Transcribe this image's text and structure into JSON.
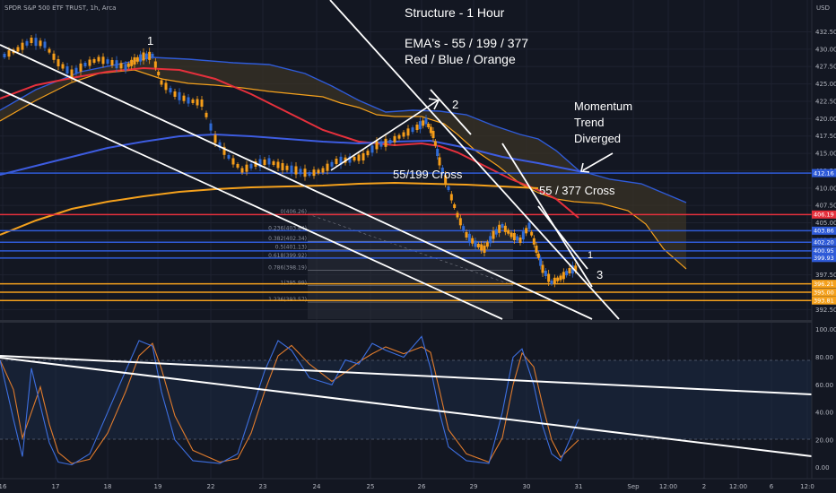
{
  "symbol_title": "SPDR S&P 500 ETF TRUST, 1h, Arca",
  "currency_label": "USD",
  "annotations": {
    "structure": "Structure - 1 Hour",
    "emas": "EMA's - 55 / 199 / 377",
    "colors": "Red  / Blue / Orange",
    "momentum": [
      "Momentum",
      "Trend",
      "Diverged"
    ],
    "cross1": "55/199 Cross",
    "cross2": "55 / 377 Cross",
    "wave1": "1",
    "wave2": "2",
    "wave3": "3",
    "wave1b": "1"
  },
  "colors": {
    "background": "#131722",
    "ema55": "#e5303c",
    "ema199": "#3d5ce0",
    "ema377": "#f5a11c",
    "candle": "#f59d19",
    "candle_up": "#2f6bd6",
    "stoch_k": "#3d6fe0",
    "stoch_d": "#e07b2c",
    "trendline": "#ffffff"
  },
  "chart_data": {
    "type": "candlestick",
    "x_ticks": [
      "16",
      "17",
      "18",
      "19",
      "22",
      "23",
      "24",
      "25",
      "26",
      "29",
      "30",
      "31",
      "Sep",
      "12:00",
      "2",
      "12:00",
      "6",
      "12:0"
    ],
    "price_ticks": [
      "432.50",
      "430.00",
      "427.50",
      "425.00",
      "422.50",
      "420.00",
      "417.50",
      "415.00",
      "412.50",
      "410.00",
      "407.50",
      "405.00",
      "402.50",
      "400.00",
      "397.50",
      "395.00",
      "392.50"
    ],
    "price_range": [
      391.0,
      434.5
    ],
    "price_labels": [
      {
        "value": 412.16,
        "text": "412.16",
        "color": "#2f5bd8"
      },
      {
        "value": 406.19,
        "text": "406.19",
        "color": "#e5303c"
      },
      {
        "value": 403.86,
        "text": "403.86",
        "color": "#2f5bd8"
      },
      {
        "value": 402.2,
        "text": "402.20",
        "color": "#2f5bd8"
      },
      {
        "value": 400.95,
        "text": "400.95",
        "color": "#2f5bd8"
      },
      {
        "value": 399.93,
        "text": "399.93",
        "color": "#2f5bd8"
      },
      {
        "value": 396.21,
        "text": "396.21",
        "color": "#f5a11c"
      },
      {
        "value": 395.0,
        "text": "395.00",
        "color": "#f5a11c"
      },
      {
        "value": 393.81,
        "text": "393.81",
        "color": "#f5a11c"
      }
    ],
    "fib_levels": [
      {
        "text": "0(406.26)",
        "value": 406.26
      },
      {
        "text": "0.236(403.84)",
        "value": 403.84
      },
      {
        "text": "0.382(402.34)",
        "value": 402.34
      },
      {
        "text": "0.5(401.13)",
        "value": 401.13
      },
      {
        "text": "0.618(399.92)",
        "value": 399.92
      },
      {
        "text": "0.786(398.19)",
        "value": 398.19
      },
      {
        "text": "1(395.99)",
        "value": 395.99
      },
      {
        "text": "1.236(393.57)",
        "value": 393.57
      }
    ],
    "stoch_ticks": [
      "100.00",
      "80.00",
      "60.00",
      "40.00",
      "20.00",
      "0.00"
    ],
    "stoch_range": [
      -8,
      105
    ]
  }
}
